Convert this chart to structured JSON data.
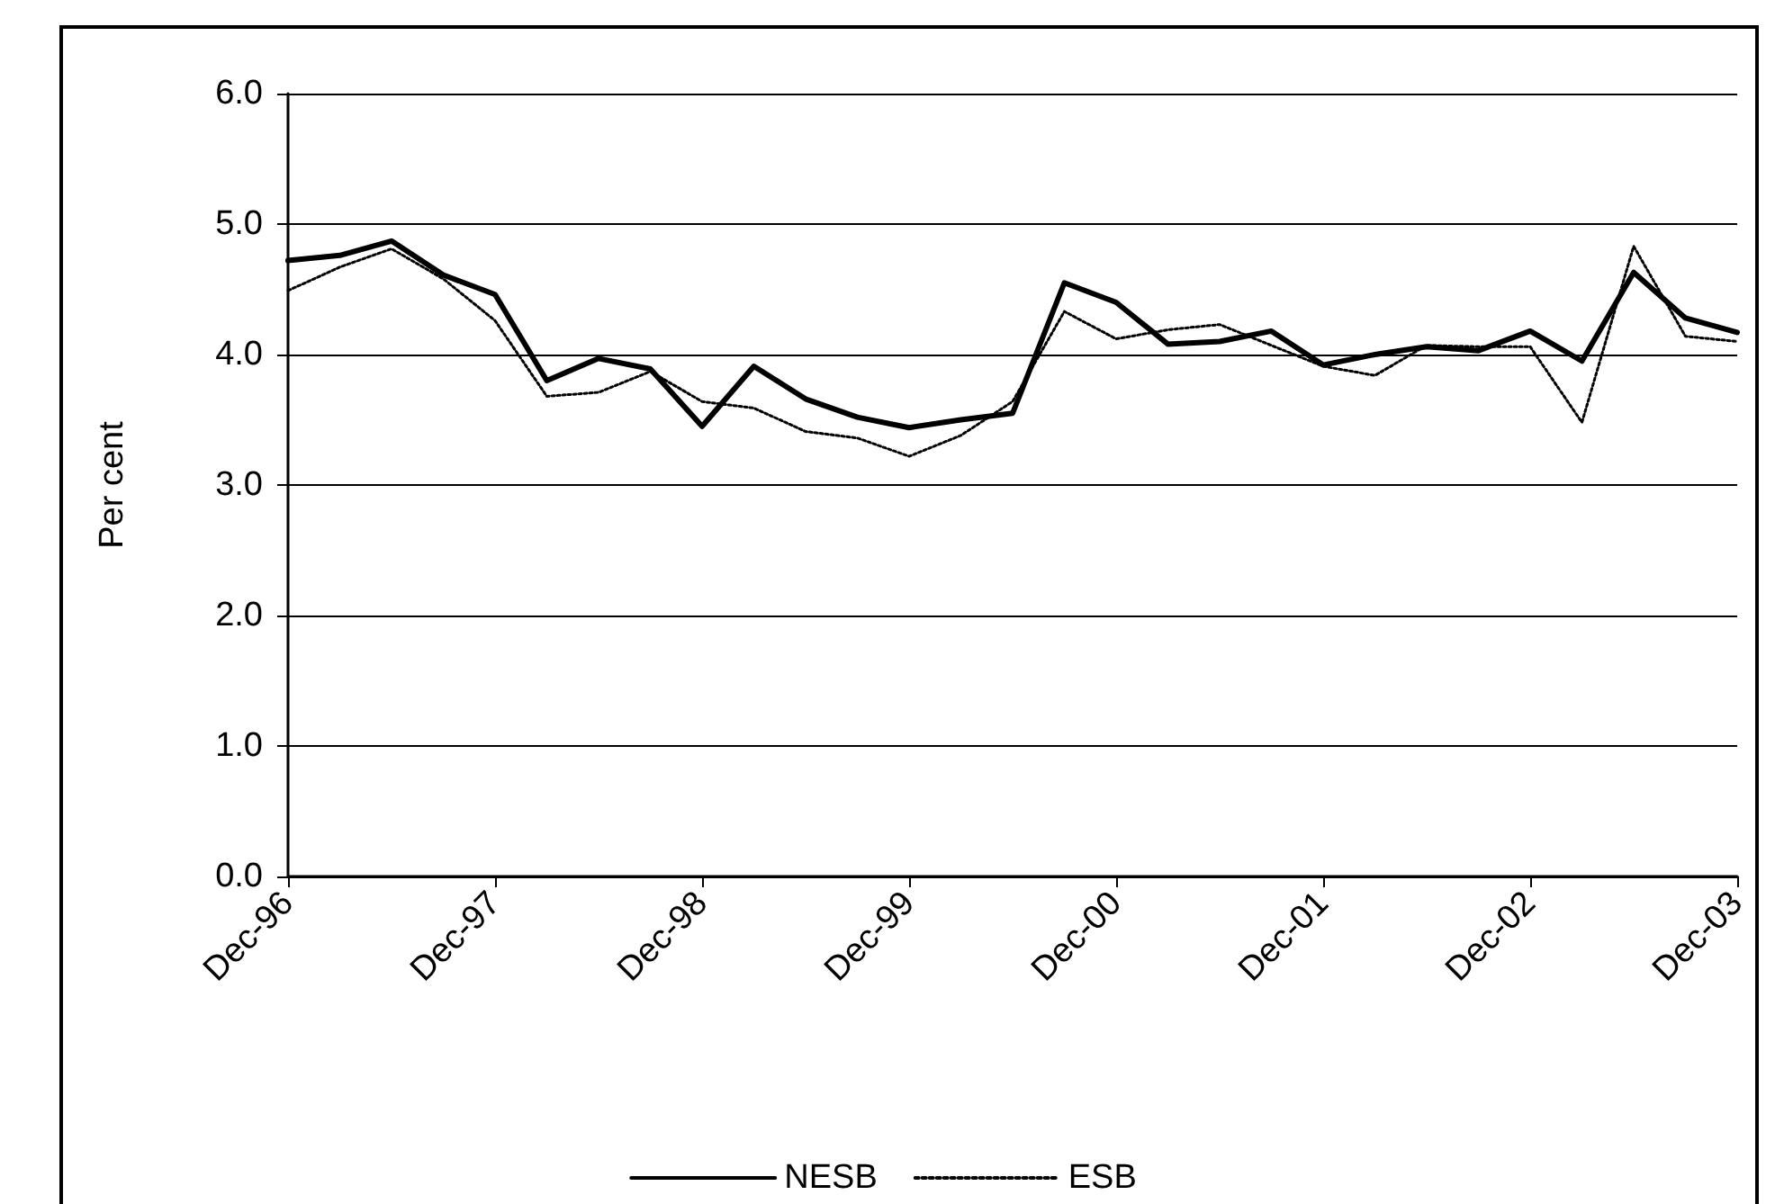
{
  "chart_data": {
    "type": "line",
    "ylabel": "Per cent",
    "categories": [
      "Dec-96",
      null,
      null,
      null,
      "Dec-97",
      null,
      null,
      null,
      "Dec-98",
      null,
      null,
      null,
      "Dec-99",
      null,
      null,
      null,
      "Dec-00",
      null,
      null,
      null,
      "Dec-01",
      null,
      null,
      null,
      "Dec-02",
      null,
      null,
      null,
      "Dec-03"
    ],
    "series": [
      {
        "name": "NESB",
        "color": "#000000",
        "line_style": "solid",
        "values": [
          4.72,
          4.76,
          4.87,
          4.61,
          4.46,
          3.8,
          3.97,
          3.89,
          3.45,
          3.91,
          3.66,
          3.52,
          3.44,
          3.5,
          3.55,
          4.55,
          4.4,
          4.08,
          4.1,
          4.18,
          3.92,
          4.0,
          4.06,
          4.03,
          4.18,
          3.95,
          4.63,
          4.28,
          4.17
        ]
      },
      {
        "name": "ESB",
        "color": "#000000",
        "line_style": "dotted",
        "values": [
          4.49,
          4.67,
          4.81,
          4.58,
          4.26,
          3.68,
          3.71,
          3.87,
          3.64,
          3.59,
          3.41,
          3.36,
          3.22,
          3.38,
          3.64,
          4.33,
          4.12,
          4.19,
          4.23,
          4.07,
          3.91,
          3.84,
          4.07,
          4.06,
          4.06,
          3.48,
          4.83,
          4.14,
          4.1
        ]
      }
    ],
    "ylim": [
      0,
      6
    ],
    "yticks": [
      {
        "value": 0,
        "label": "0.0"
      },
      {
        "value": 1,
        "label": "1.0"
      },
      {
        "value": 2,
        "label": "2.0"
      },
      {
        "value": 3,
        "label": "3.0"
      },
      {
        "value": 4,
        "label": "4.0"
      },
      {
        "value": 5,
        "label": "5.0"
      },
      {
        "value": 6,
        "label": "6.0"
      }
    ],
    "grid": "y",
    "legend": "bottom",
    "marker": "none"
  }
}
